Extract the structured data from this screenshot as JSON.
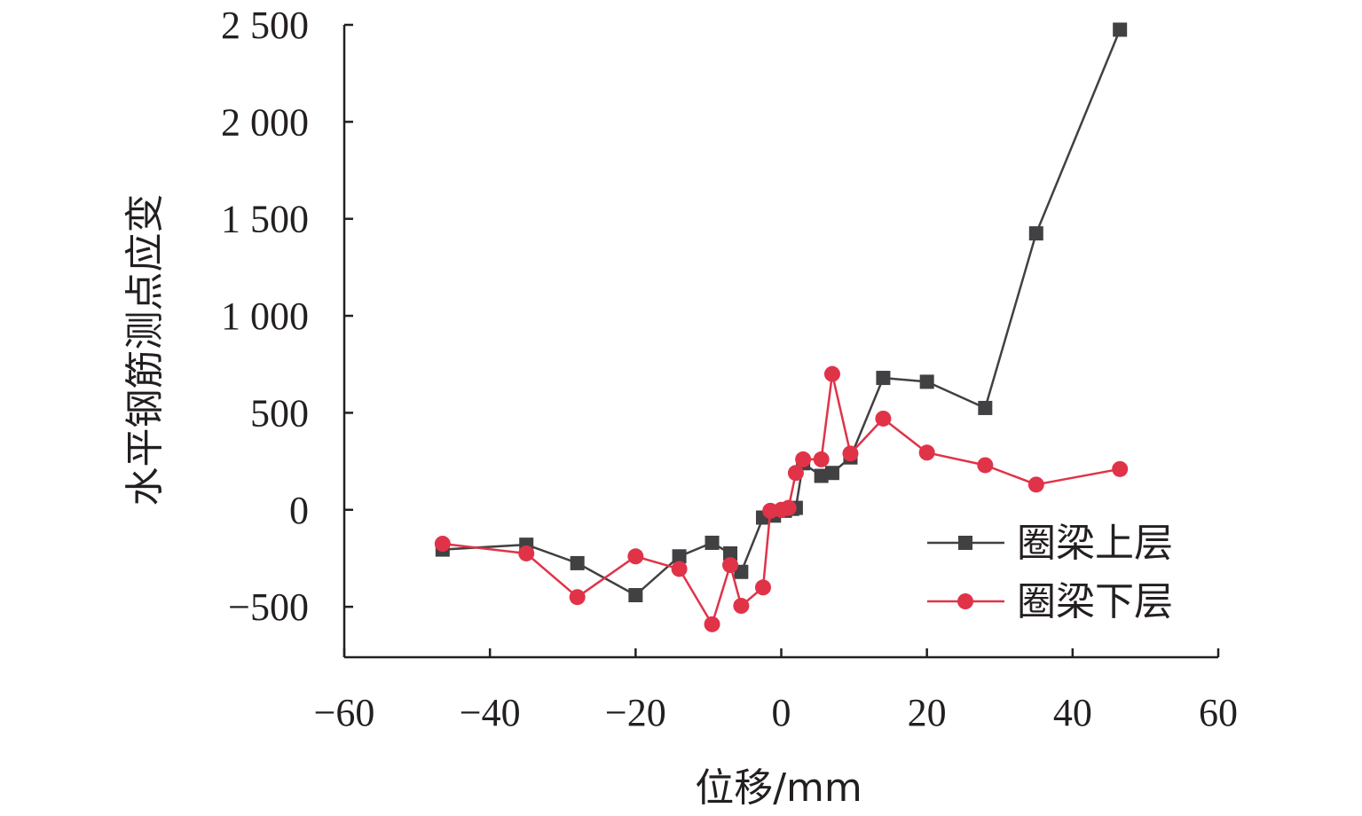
{
  "chart_data": {
    "type": "line",
    "title": "",
    "xlabel": "位移/mm",
    "ylabel": "水平钢筋测点应变",
    "xlim": [
      -60,
      60
    ],
    "ylim": [
      -760,
      2500
    ],
    "x_ticks": [
      -60,
      -40,
      -20,
      0,
      20,
      40,
      60
    ],
    "x_tick_labels": [
      "−60",
      "−40",
      "−20",
      "0",
      "20",
      "40",
      "60"
    ],
    "y_ticks": [
      -500,
      0,
      500,
      1000,
      1500,
      2000,
      2500
    ],
    "y_tick_labels": [
      "−500",
      "0",
      "500",
      "1 000",
      "1 500",
      "2 000",
      "2 500"
    ],
    "grid": false,
    "legend_position": "bottom-right",
    "series": [
      {
        "name": "圈梁上层",
        "color": "#414042",
        "marker": "square",
        "points": [
          [
            -46.5,
            -205
          ],
          [
            -35,
            -180
          ],
          [
            -28,
            -275
          ],
          [
            -20,
            -440
          ],
          [
            -14,
            -240
          ],
          [
            -9.5,
            -170
          ],
          [
            -7,
            -225
          ],
          [
            -5.5,
            -320
          ],
          [
            -2.5,
            -40
          ],
          [
            -1,
            -30
          ],
          [
            0.5,
            -5
          ],
          [
            1.5,
            5
          ],
          [
            2,
            10
          ],
          [
            3,
            240
          ],
          [
            5.5,
            175
          ],
          [
            7,
            190
          ],
          [
            9.5,
            270
          ],
          [
            14,
            680
          ],
          [
            20,
            660
          ],
          [
            28,
            525
          ],
          [
            35,
            1425
          ],
          [
            46.5,
            2475
          ]
        ]
      },
      {
        "name": "圈梁下层",
        "color": "#e03348",
        "marker": "circle",
        "points": [
          [
            -46.5,
            -175
          ],
          [
            -35,
            -225
          ],
          [
            -28,
            -450
          ],
          [
            -20,
            -240
          ],
          [
            -14,
            -305
          ],
          [
            -9.5,
            -590
          ],
          [
            -7,
            -285
          ],
          [
            -5.5,
            -495
          ],
          [
            -2.5,
            -400
          ],
          [
            -1.5,
            -5
          ],
          [
            0,
            0
          ],
          [
            1,
            10
          ],
          [
            2,
            190
          ],
          [
            3,
            260
          ],
          [
            5.5,
            260
          ],
          [
            7,
            700
          ],
          [
            9.5,
            290
          ],
          [
            14,
            470
          ],
          [
            20,
            295
          ],
          [
            28,
            230
          ],
          [
            35,
            130
          ],
          [
            46.5,
            210
          ]
        ]
      }
    ]
  }
}
